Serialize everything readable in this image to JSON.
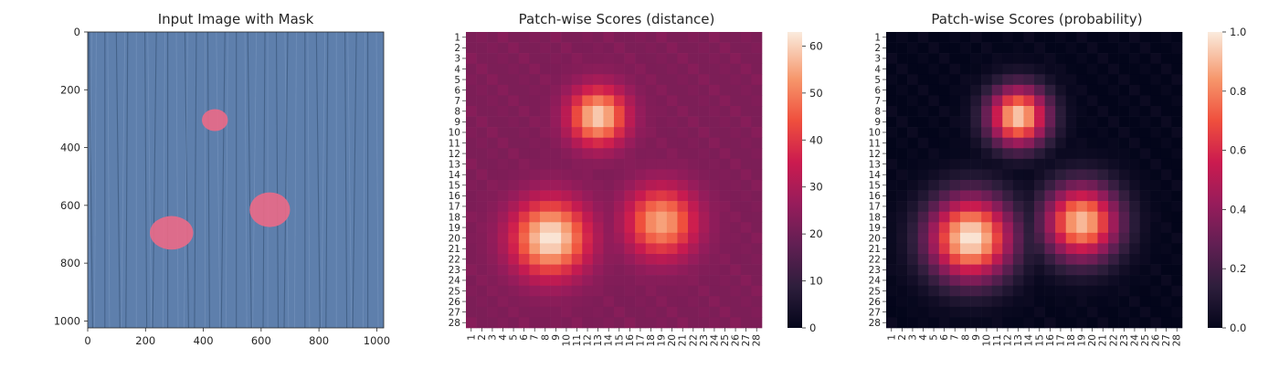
{
  "panels": {
    "image": {
      "title": "Input Image with Mask",
      "x_ticks": [
        "0",
        "200",
        "400",
        "600",
        "800",
        "1000"
      ],
      "y_ticks": [
        "0",
        "200",
        "400",
        "600",
        "800",
        "1000"
      ],
      "x_range": [
        0,
        1024
      ],
      "y_range": [
        0,
        1024
      ],
      "background_color": "#5e7fac",
      "mask_color": "#ef6a86"
    },
    "distance": {
      "title": "Patch-wise Scores (distance)",
      "colorbar_ticks": [
        "0",
        "10",
        "20",
        "30",
        "40",
        "50",
        "60"
      ],
      "colorbar_range": [
        0,
        63
      ]
    },
    "probability": {
      "title": "Patch-wise Scores (probability)",
      "colorbar_ticks": [
        "0.0",
        "0.2",
        "0.4",
        "0.6",
        "0.8",
        "1.0"
      ],
      "colorbar_range": [
        0,
        1
      ]
    }
  },
  "chart_data": [
    {
      "type": "image",
      "title": "Input Image with Mask",
      "xlim": [
        0,
        1024
      ],
      "ylim": [
        1024,
        0
      ],
      "mask_regions": [
        {
          "cx": 440,
          "cy": 305,
          "rx": 45,
          "ry": 38
        },
        {
          "cx": 630,
          "cy": 615,
          "rx": 70,
          "ry": 60
        },
        {
          "cx": 290,
          "cy": 695,
          "rx": 75,
          "ry": 58
        }
      ]
    },
    {
      "type": "heatmap",
      "title": "Patch-wise Scores (distance)",
      "rows": [
        "1",
        "2",
        "3",
        "4",
        "5",
        "6",
        "7",
        "8",
        "9",
        "10",
        "11",
        "12",
        "13",
        "14",
        "15",
        "16",
        "17",
        "18",
        "19",
        "20",
        "21",
        "22",
        "23",
        "24",
        "25",
        "26",
        "27",
        "28"
      ],
      "cols": [
        "1",
        "2",
        "3",
        "4",
        "5",
        "6",
        "7",
        "8",
        "9",
        "10",
        "11",
        "12",
        "13",
        "14",
        "15",
        "16",
        "17",
        "18",
        "19",
        "20",
        "21",
        "22",
        "23",
        "24",
        "25",
        "26",
        "27",
        "28"
      ],
      "colorbar_range": [
        0,
        63
      ],
      "background": 22,
      "hotspots": [
        {
          "row": 8.5,
          "col": 13,
          "peak": 60,
          "spread": 1.9
        },
        {
          "row": 20,
          "col": 8.5,
          "peak": 63,
          "spread": 2.5
        },
        {
          "row": 18.5,
          "col": 19,
          "peak": 55,
          "spread": 2.3
        }
      ]
    },
    {
      "type": "heatmap",
      "title": "Patch-wise Scores (probability)",
      "rows": [
        "1",
        "2",
        "3",
        "4",
        "5",
        "6",
        "7",
        "8",
        "9",
        "10",
        "11",
        "12",
        "13",
        "14",
        "15",
        "16",
        "17",
        "18",
        "19",
        "20",
        "21",
        "22",
        "23",
        "24",
        "25",
        "26",
        "27",
        "28"
      ],
      "cols": [
        "1",
        "2",
        "3",
        "4",
        "5",
        "6",
        "7",
        "8",
        "9",
        "10",
        "11",
        "12",
        "13",
        "14",
        "15",
        "16",
        "17",
        "18",
        "19",
        "20",
        "21",
        "22",
        "23",
        "24",
        "25",
        "26",
        "27",
        "28"
      ],
      "colorbar_range": [
        0,
        1
      ],
      "background": 0,
      "hotspots": [
        {
          "row": 8.5,
          "col": 13,
          "peak": 0.95,
          "spread": 2.0
        },
        {
          "row": 20,
          "col": 8.5,
          "peak": 1.0,
          "spread": 2.8
        },
        {
          "row": 18.5,
          "col": 19,
          "peak": 0.92,
          "spread": 2.5
        }
      ]
    }
  ]
}
